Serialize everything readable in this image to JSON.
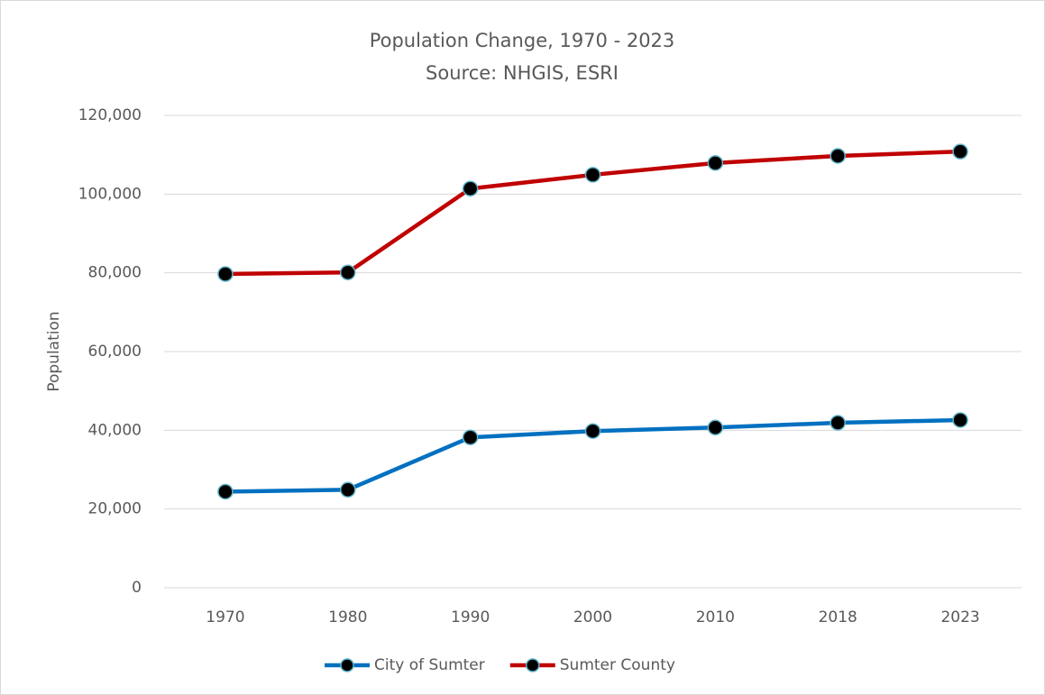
{
  "chart_data": {
    "type": "line",
    "title": "Population Change, 1970 - 2023",
    "subtitle": "Source: NHGIS, ESRI",
    "y_label": "Population",
    "categories": [
      "1970",
      "1980",
      "1990",
      "2000",
      "2010",
      "2018",
      "2023"
    ],
    "series": [
      {
        "name": "City of Sumter",
        "color": "#0070c0",
        "values": [
          24400,
          24900,
          38200,
          39800,
          40700,
          41900,
          42600
        ]
      },
      {
        "name": "Sumter County",
        "color": "#c00000",
        "values": [
          79700,
          80100,
          101400,
          104900,
          107900,
          109700,
          110800
        ]
      }
    ],
    "marker_color": "#000000",
    "marker_edge_color": "#5fb4c9",
    "ylim": [
      0,
      120000
    ],
    "yticks": [
      0,
      {
        "value": 20000,
        "label": "20,000"
      },
      {
        "value": 40000,
        "label": "40,000"
      },
      {
        "value": 60000,
        "label": "60,000"
      },
      {
        "value": 80000,
        "label": "80,000"
      },
      {
        "value": 100000,
        "label": "100,000"
      },
      {
        "value": 120000,
        "label": "120,000"
      }
    ],
    "grid": true,
    "legend": "bottom"
  }
}
